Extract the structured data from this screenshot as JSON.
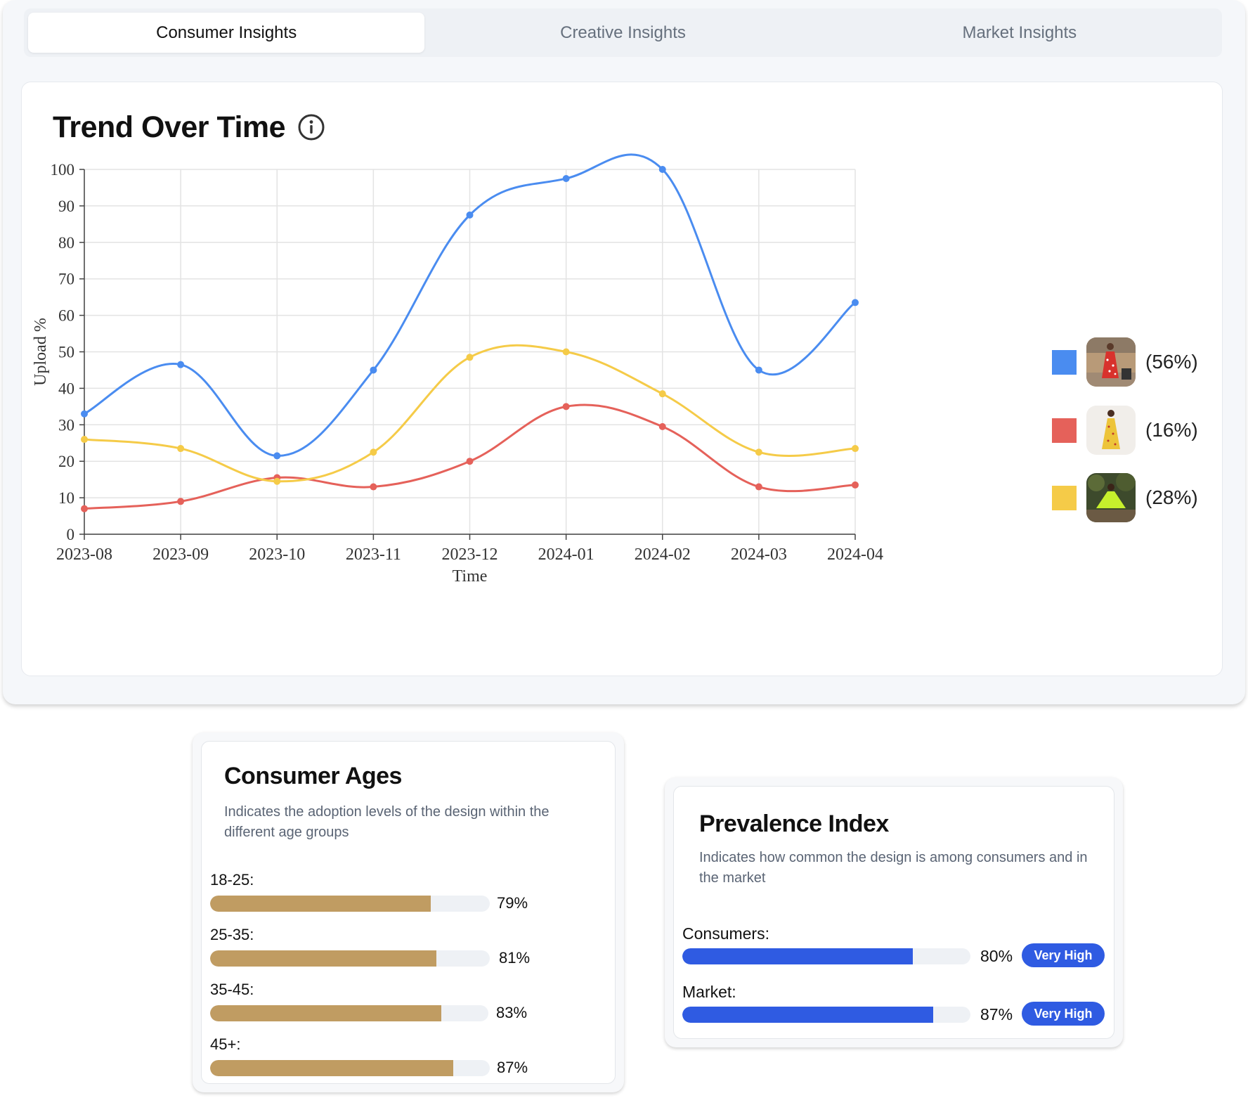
{
  "tabs": [
    {
      "label": "Consumer Insights",
      "active": true
    },
    {
      "label": "Creative Insights",
      "active": false
    },
    {
      "label": "Market Insights",
      "active": false
    }
  ],
  "trend": {
    "title": "Trend Over Time",
    "info_icon": "info-circle-icon"
  },
  "chart_data": {
    "type": "line",
    "xlabel": "Time",
    "ylabel": "Upload %",
    "ylim": [
      0,
      100
    ],
    "yticks": [
      0,
      10,
      20,
      30,
      40,
      50,
      60,
      70,
      80,
      90,
      100
    ],
    "grid": true,
    "legend_placement": "right",
    "x": [
      "2023-08",
      "2023-09",
      "2023-10",
      "2023-11",
      "2023-12",
      "2024-01",
      "2024-02",
      "2024-03",
      "2024-04"
    ],
    "series": [
      {
        "color": "#4a8cf0",
        "values": [
          33,
          46.5,
          21.5,
          45,
          87.5,
          97.5,
          100,
          45,
          63.5
        ]
      },
      {
        "color": "#e5615a",
        "values": [
          7,
          9,
          15.5,
          13,
          20,
          35,
          29.5,
          13,
          13.5
        ]
      },
      {
        "color": "#f5cb48",
        "values": [
          26,
          23.5,
          14.5,
          22.5,
          48.5,
          50,
          38.5,
          22.5,
          23.5
        ]
      }
    ]
  },
  "legend": [
    {
      "color": "#4a8cf0",
      "pct": "(56%)",
      "thumb": "red-floral-dress-photo"
    },
    {
      "color": "#e5615a",
      "pct": "(16%)",
      "thumb": "yellow-floral-dress-photo"
    },
    {
      "color": "#f5cb48",
      "pct": "(28%)",
      "thumb": "lime-dress-photo"
    }
  ],
  "ages": {
    "title": "Consumer Ages",
    "description": "Indicates the adoption levels of the design within the different age groups",
    "bar_color": "#c09c62",
    "rows": [
      {
        "label": "18-25:",
        "pct_text": "79%",
        "value": 0.79
      },
      {
        "label": "25-35:",
        "pct_text": "81%",
        "value": 0.81
      },
      {
        "label": "35-45:",
        "pct_text": "83%",
        "value": 0.83
      },
      {
        "label": "45+:",
        "pct_text": "87%",
        "value": 0.87
      }
    ]
  },
  "prevalence": {
    "title": "Prevalence Index",
    "description": "Indicates how common the design is among consumers and in the market",
    "bar_color": "#2f5be2",
    "rows": [
      {
        "label": "Consumers:",
        "pct_text": "80%",
        "value": 0.8,
        "badge": "Very High"
      },
      {
        "label": "Market:",
        "pct_text": "87%",
        "value": 0.87,
        "badge": "Very High"
      }
    ]
  }
}
